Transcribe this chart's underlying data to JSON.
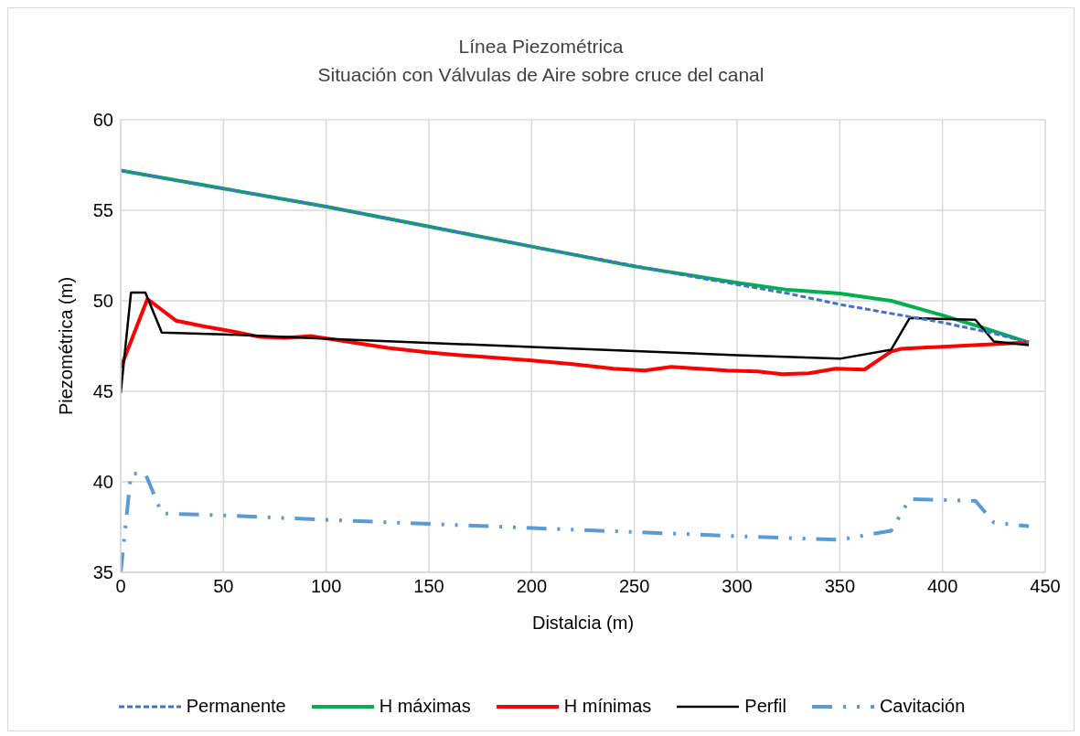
{
  "chart_data": {
    "type": "line",
    "title": "Línea Piezométrica",
    "subtitle": "Situación con Válvulas de Aire sobre cruce del canal",
    "xlabel": "Distalcia (m)",
    "ylabel": "Piezométrica (m)",
    "xlim": [
      0,
      450
    ],
    "xticks": [
      0,
      50,
      100,
      150,
      200,
      250,
      300,
      350,
      400,
      450
    ],
    "ylim": [
      35,
      60
    ],
    "yticks": [
      35,
      40,
      45,
      50,
      55,
      60
    ],
    "grid": true,
    "legend": "bottom",
    "marker": "none",
    "series": [
      {
        "name": "Permanente",
        "color": "#4472c4",
        "line_style": "dashed",
        "x": [
          0,
          100,
          200,
          280,
          300,
          325,
          350,
          375,
          400,
          425,
          442
        ],
        "values": [
          57.2,
          55.2,
          53.0,
          51.3,
          50.9,
          50.4,
          49.8,
          49.3,
          48.8,
          48.2,
          47.7
        ]
      },
      {
        "name": "H máximas",
        "color": "#00b050",
        "line_style": "solid",
        "x": [
          0,
          50,
          100,
          150,
          200,
          250,
          300,
          325,
          350,
          375,
          400,
          420,
          442
        ],
        "values": [
          57.2,
          56.2,
          55.2,
          54.1,
          53.0,
          51.9,
          51.0,
          50.6,
          50.4,
          50.0,
          49.2,
          48.5,
          47.7
        ]
      },
      {
        "name": "H mínimas",
        "color": "#ff0000",
        "line_style": "solid",
        "x": [
          0,
          13,
          27,
          40,
          55,
          68,
          80,
          93,
          107,
          130,
          150,
          165,
          200,
          220,
          240,
          255,
          268,
          295,
          310,
          322,
          335,
          348,
          362,
          375,
          380,
          442
        ],
        "values": [
          46.3,
          50.1,
          48.9,
          48.6,
          48.3,
          48.0,
          47.95,
          48.05,
          47.8,
          47.4,
          47.15,
          47.0,
          46.7,
          46.5,
          46.25,
          46.15,
          46.35,
          46.15,
          46.1,
          45.95,
          46.0,
          46.25,
          46.2,
          47.2,
          47.35,
          47.7
        ]
      },
      {
        "name": "Perfil",
        "color": "#000000",
        "line_style": "solid",
        "x": [
          0,
          5,
          12,
          20,
          50,
          100,
          200,
          300,
          350,
          375,
          384,
          416,
          425,
          442
        ],
        "values": [
          44.9,
          50.45,
          50.45,
          48.25,
          48.15,
          47.9,
          47.45,
          47.0,
          46.8,
          47.3,
          49.05,
          48.95,
          47.75,
          47.55
        ]
      },
      {
        "name": "Cavitación",
        "color": "#5b9bd5",
        "line_style": "dashdot",
        "x": [
          0,
          5,
          12,
          20,
          50,
          100,
          200,
          300,
          350,
          375,
          384,
          416,
          425,
          442
        ],
        "values": [
          35.0,
          40.45,
          40.45,
          38.25,
          38.15,
          37.9,
          37.45,
          37.0,
          36.8,
          37.3,
          39.05,
          38.95,
          37.75,
          37.55
        ]
      }
    ]
  }
}
